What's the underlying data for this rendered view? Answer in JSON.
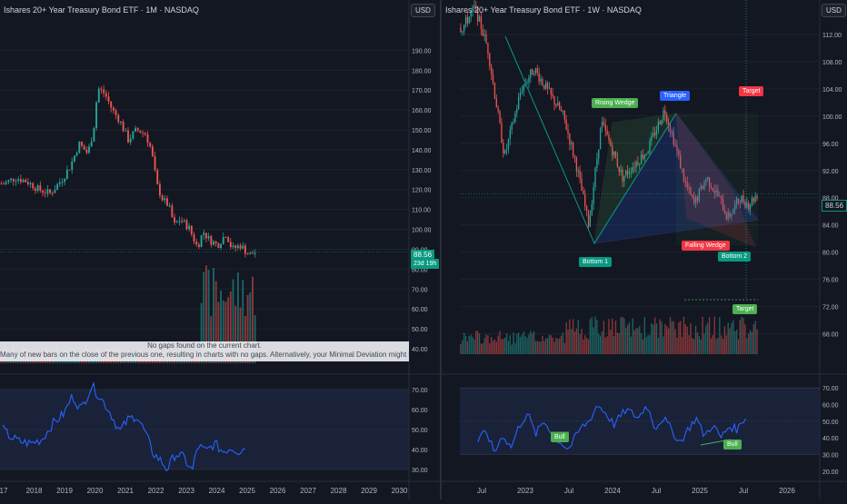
{
  "colors": {
    "background": "#131722",
    "up": "#26a69a",
    "down": "#ef5350",
    "rsi": "#2962ff",
    "rsi_band": "#1e2a4a",
    "volume_ma": "#ff9800",
    "tag_green": "#4caf50",
    "tag_blue": "#2962ff",
    "tag_red": "#f23645",
    "tag_teal": "#089981"
  },
  "left": {
    "title": "Ishares 20+ Year Treasury Bond ETF · 1M · NASDAQ",
    "currency": "USD",
    "price_label": "88.56",
    "countdown": "23d 19h",
    "notice_line1": "No gaps found on the current chart.",
    "notice_line2": "Many of new bars on the close of the previous one, resulting in charts with no gaps. Alternatively, your Minimal Deviation might be too high."
  },
  "right": {
    "title": "Ishares 20+ Year Treasury Bond ETF · 1W · NASDAQ",
    "currency": "USD",
    "price_label": "88.56",
    "patterns": {
      "rising_wedge": "Rising Wedge",
      "triangle": "Triangle",
      "target_top": "Target",
      "falling_wedge": "Falling Wedge",
      "bottom1": "Bottom 1",
      "bottom2": "Bottom 2",
      "target_bottom": "Target"
    },
    "rsi_labels": [
      "Bull",
      "Bull"
    ]
  },
  "chart_data": [
    {
      "type": "candlestick",
      "timeframe": "1M",
      "price_axis": {
        "ticks": [
          40,
          50,
          60,
          70,
          80,
          90,
          100,
          110,
          120,
          130,
          140,
          150,
          160,
          170,
          180,
          190
        ],
        "range": [
          35,
          197
        ],
        "tick_labels": [
          "40.00",
          "50.00",
          "60.00",
          "70.00",
          "80.00",
          "90.00",
          "100.00",
          "110.00",
          "120.00",
          "130.00",
          "140.00",
          "150.00",
          "160.00",
          "170.00",
          "180.00",
          "190.00"
        ]
      },
      "x_axis": {
        "labels": [
          "17",
          "2018",
          "2019",
          "2020",
          "2021",
          "2022",
          "2023",
          "2024",
          "2025",
          "2026",
          "2027",
          "2028",
          "2029",
          "2030"
        ]
      },
      "close_series": [
        {
          "year": 2017.0,
          "close": 123
        },
        {
          "year": 2017.4,
          "close": 126
        },
        {
          "year": 2017.8,
          "close": 124
        },
        {
          "year": 2018.2,
          "close": 120
        },
        {
          "year": 2018.6,
          "close": 118
        },
        {
          "year": 2019.0,
          "close": 125
        },
        {
          "year": 2019.3,
          "close": 132
        },
        {
          "year": 2019.6,
          "close": 143
        },
        {
          "year": 2019.9,
          "close": 138
        },
        {
          "year": 2020.1,
          "close": 150
        },
        {
          "year": 2020.25,
          "close": 171
        },
        {
          "year": 2020.5,
          "close": 168
        },
        {
          "year": 2020.75,
          "close": 160
        },
        {
          "year": 2021.0,
          "close": 155
        },
        {
          "year": 2021.3,
          "close": 145
        },
        {
          "year": 2021.6,
          "close": 150
        },
        {
          "year": 2021.9,
          "close": 148
        },
        {
          "year": 2022.1,
          "close": 140
        },
        {
          "year": 2022.3,
          "close": 122
        },
        {
          "year": 2022.5,
          "close": 115
        },
        {
          "year": 2022.7,
          "close": 112
        },
        {
          "year": 2022.9,
          "close": 102
        },
        {
          "year": 2023.1,
          "close": 105
        },
        {
          "year": 2023.4,
          "close": 101
        },
        {
          "year": 2023.7,
          "close": 91
        },
        {
          "year": 2023.9,
          "close": 99
        },
        {
          "year": 2024.1,
          "close": 95
        },
        {
          "year": 2024.4,
          "close": 92
        },
        {
          "year": 2024.7,
          "close": 98
        },
        {
          "year": 2024.9,
          "close": 90
        },
        {
          "year": 2025.2,
          "close": 92
        },
        {
          "year": 2025.5,
          "close": 87
        },
        {
          "year": 2025.7,
          "close": 88.56
        }
      ],
      "rsi": {
        "ticks": [
          30,
          40,
          50,
          60,
          70
        ],
        "tick_labels": [
          "30.00",
          "40.00",
          "50.00",
          "60.00",
          "70.00"
        ],
        "upper": 70,
        "lower": 30,
        "values": [
          {
            "year": 2017.0,
            "v": 50
          },
          {
            "year": 2017.3,
            "v": 46
          },
          {
            "year": 2017.6,
            "v": 44
          },
          {
            "year": 2018.0,
            "v": 43
          },
          {
            "year": 2018.4,
            "v": 45
          },
          {
            "year": 2018.8,
            "v": 53
          },
          {
            "year": 2019.2,
            "v": 58
          },
          {
            "year": 2019.5,
            "v": 67
          },
          {
            "year": 2019.8,
            "v": 60
          },
          {
            "year": 2020.2,
            "v": 72
          },
          {
            "year": 2020.5,
            "v": 66
          },
          {
            "year": 2020.8,
            "v": 60
          },
          {
            "year": 2021.2,
            "v": 49
          },
          {
            "year": 2021.5,
            "v": 55
          },
          {
            "year": 2021.8,
            "v": 57
          },
          {
            "year": 2022.1,
            "v": 49
          },
          {
            "year": 2022.4,
            "v": 38
          },
          {
            "year": 2022.7,
            "v": 34
          },
          {
            "year": 2022.9,
            "v": 30
          },
          {
            "year": 2023.2,
            "v": 38
          },
          {
            "year": 2023.5,
            "v": 36
          },
          {
            "year": 2023.8,
            "v": 29
          },
          {
            "year": 2024.0,
            "v": 42
          },
          {
            "year": 2024.3,
            "v": 39
          },
          {
            "year": 2024.6,
            "v": 43
          },
          {
            "year": 2024.9,
            "v": 39
          },
          {
            "year": 2025.2,
            "v": 41
          },
          {
            "year": 2025.5,
            "v": 39
          },
          {
            "year": 2025.7,
            "v": 41
          }
        ]
      }
    },
    {
      "type": "candlestick",
      "timeframe": "1W",
      "price_axis": {
        "ticks": [
          68,
          72,
          76,
          80,
          84,
          88,
          92,
          96,
          100,
          104,
          108,
          112
        ],
        "range": [
          65,
          116
        ],
        "tick_labels": [
          "68.00",
          "72.00",
          "76.00",
          "80.00",
          "84.00",
          "88.00",
          "92.00",
          "96.00",
          "100.00",
          "104.00",
          "108.00",
          "112.00"
        ]
      },
      "x_axis": {
        "labels": [
          "Jul",
          "2023",
          "Jul",
          "2024",
          "Jul",
          "2025",
          "Jul",
          "2026"
        ]
      },
      "close_series": [
        {
          "t": 2022.3,
          "close": 113
        },
        {
          "t": 2022.45,
          "close": 116
        },
        {
          "t": 2022.6,
          "close": 110
        },
        {
          "t": 2022.8,
          "close": 94
        },
        {
          "t": 2023.0,
          "close": 104
        },
        {
          "t": 2023.15,
          "close": 107
        },
        {
          "t": 2023.3,
          "close": 104
        },
        {
          "t": 2023.5,
          "close": 100
        },
        {
          "t": 2023.65,
          "close": 93
        },
        {
          "t": 2023.8,
          "close": 84
        },
        {
          "t": 2023.95,
          "close": 99
        },
        {
          "t": 2024.05,
          "close": 96
        },
        {
          "t": 2024.2,
          "close": 91
        },
        {
          "t": 2024.35,
          "close": 93
        },
        {
          "t": 2024.5,
          "close": 95
        },
        {
          "t": 2024.7,
          "close": 101
        },
        {
          "t": 2024.8,
          "close": 97
        },
        {
          "t": 2024.95,
          "close": 90
        },
        {
          "t": 2025.05,
          "close": 87
        },
        {
          "t": 2025.2,
          "close": 91
        },
        {
          "t": 2025.35,
          "close": 88
        },
        {
          "t": 2025.45,
          "close": 85
        },
        {
          "t": 2025.6,
          "close": 88
        },
        {
          "t": 2025.7,
          "close": 87
        },
        {
          "t": 2025.8,
          "close": 88.56
        }
      ],
      "rsi": {
        "ticks": [
          20,
          30,
          40,
          50,
          60,
          70
        ],
        "tick_labels": [
          "20.00",
          "30.00",
          "40.00",
          "50.00",
          "60.00",
          "70.00"
        ],
        "upper": 70,
        "lower": 30,
        "values": [
          {
            "t": 2022.5,
            "v": 38
          },
          {
            "t": 2022.6,
            "v": 44
          },
          {
            "t": 2022.7,
            "v": 31
          },
          {
            "t": 2022.8,
            "v": 42
          },
          {
            "t": 2022.9,
            "v": 34
          },
          {
            "t": 2023.0,
            "v": 47
          },
          {
            "t": 2023.1,
            "v": 55
          },
          {
            "t": 2023.2,
            "v": 42
          },
          {
            "t": 2023.3,
            "v": 50
          },
          {
            "t": 2023.45,
            "v": 40
          },
          {
            "t": 2023.6,
            "v": 33
          },
          {
            "t": 2023.75,
            "v": 46
          },
          {
            "t": 2023.85,
            "v": 50
          },
          {
            "t": 2023.95,
            "v": 60
          },
          {
            "t": 2024.05,
            "v": 55
          },
          {
            "t": 2024.15,
            "v": 48
          },
          {
            "t": 2024.3,
            "v": 57
          },
          {
            "t": 2024.45,
            "v": 52
          },
          {
            "t": 2024.55,
            "v": 60
          },
          {
            "t": 2024.65,
            "v": 46
          },
          {
            "t": 2024.75,
            "v": 52
          },
          {
            "t": 2024.85,
            "v": 45
          },
          {
            "t": 2024.95,
            "v": 37
          },
          {
            "t": 2025.05,
            "v": 45
          },
          {
            "t": 2025.15,
            "v": 52
          },
          {
            "t": 2025.25,
            "v": 41
          },
          {
            "t": 2025.35,
            "v": 48
          },
          {
            "t": 2025.45,
            "v": 40
          },
          {
            "t": 2025.55,
            "v": 47
          },
          {
            "t": 2025.65,
            "v": 45
          },
          {
            "t": 2025.75,
            "v": 53
          }
        ]
      }
    }
  ]
}
